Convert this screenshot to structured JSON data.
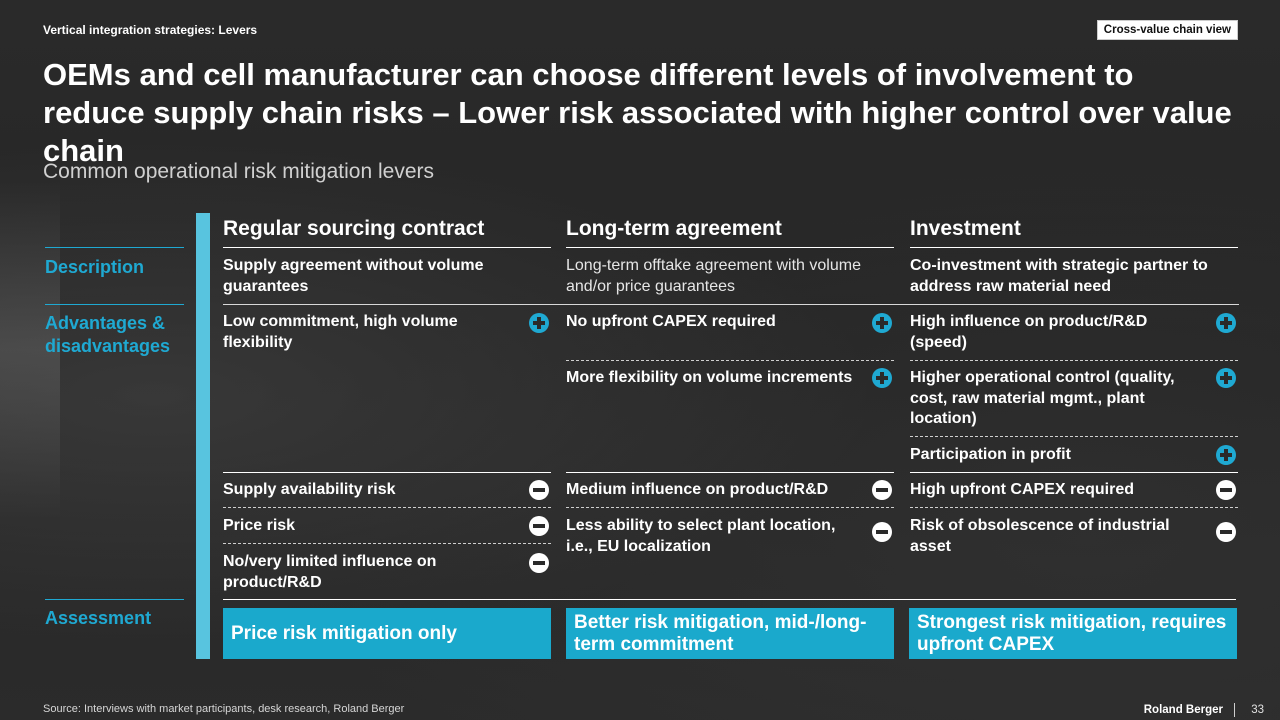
{
  "header": {
    "tag": "Vertical integration  strategies: Levers",
    "view_badge": "Cross-value chain view",
    "title": "OEMs and cell manufacturer can choose different levels of involvement to reduce supply chain risks – Lower risk associated with higher control over value chain",
    "subtitle": "Common operational risk mitigation levers"
  },
  "row_labels": {
    "description": "Description",
    "adv": "Advantages & disadvantages",
    "assessment": "Assessment"
  },
  "columns": [
    {
      "header": "Regular sourcing contract",
      "description": "Supply agreement without volume guarantees",
      "advantages": [
        "Low commitment, high volume flexibility"
      ],
      "disadvantages": [
        "Supply availability risk",
        "Price risk",
        "No/very limited influence on product/R&D"
      ],
      "assessment": "Price risk mitigation only"
    },
    {
      "header": "Long-term agreement",
      "description": "Long-term offtake agreement with volume and/or price guarantees",
      "advantages": [
        "No upfront CAPEX required",
        "More flexibility on volume increments"
      ],
      "disadvantages": [
        "Medium influence on product/R&D",
        "Less ability to select plant location, i.e., EU localization"
      ],
      "assessment": "Better risk mitigation, mid-/long-term commitment"
    },
    {
      "header": "Investment",
      "description": "Co-investment with strategic partner to address raw material need",
      "advantages": [
        "High influence on product/R&D (speed)",
        "Higher operational control (quality, cost, raw material mgmt., plant location)",
        "Participation in profit"
      ],
      "disadvantages": [
        "High upfront CAPEX required",
        "Risk of obsolescence of industrial asset"
      ],
      "assessment": "Strongest risk mitigation, requires upfront CAPEX"
    }
  ],
  "footer": {
    "source": "Source: Interviews with market participants, desk research, Roland Berger",
    "brand": "Roland Berger",
    "page_number": "33"
  },
  "colors": {
    "accent": "#1fa9d2",
    "assessment_fill": "#1aa9cc",
    "side_bar": "#58c4df",
    "background": "#282828"
  },
  "icons": {
    "advantage": "plus-circle-icon",
    "disadvantage": "minus-circle-icon"
  }
}
